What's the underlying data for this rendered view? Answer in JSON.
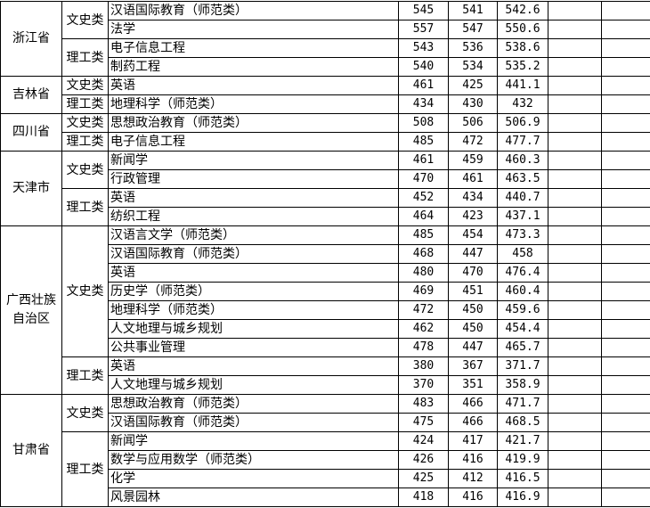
{
  "table": {
    "provinces": [
      {
        "name": "浙江省",
        "categories": [
          {
            "name": "文史类",
            "rows": [
              {
                "major": "汉语国际教育（师范类）",
                "max": "545",
                "min": "541",
                "avg": "542.6"
              },
              {
                "major": "法学",
                "max": "557",
                "min": "547",
                "avg": "550.6"
              }
            ]
          },
          {
            "name": "理工类",
            "rows": [
              {
                "major": "电子信息工程",
                "max": "543",
                "min": "536",
                "avg": "538.6"
              },
              {
                "major": "制药工程",
                "max": "540",
                "min": "534",
                "avg": "535.2"
              }
            ]
          }
        ]
      },
      {
        "name": "吉林省",
        "categories": [
          {
            "name": "文史类",
            "rows": [
              {
                "major": "英语",
                "max": "461",
                "min": "425",
                "avg": "441.1"
              }
            ]
          },
          {
            "name": "理工类",
            "rows": [
              {
                "major": "地理科学（师范类）",
                "max": "434",
                "min": "430",
                "avg": "432"
              }
            ]
          }
        ]
      },
      {
        "name": "四川省",
        "categories": [
          {
            "name": "文史类",
            "rows": [
              {
                "major": "思想政治教育（师范类）",
                "max": "508",
                "min": "506",
                "avg": "506.9"
              }
            ]
          },
          {
            "name": "理工类",
            "rows": [
              {
                "major": "电子信息工程",
                "max": "485",
                "min": "472",
                "avg": "477.7"
              }
            ]
          }
        ]
      },
      {
        "name": "天津市",
        "categories": [
          {
            "name": "文史类",
            "rows": [
              {
                "major": "新闻学",
                "max": "461",
                "min": "459",
                "avg": "460.3"
              },
              {
                "major": "行政管理",
                "max": "470",
                "min": "461",
                "avg": "463.5"
              }
            ]
          },
          {
            "name": "理工类",
            "rows": [
              {
                "major": "英语",
                "max": "452",
                "min": "434",
                "avg": "440.7"
              },
              {
                "major": "纺织工程",
                "max": "464",
                "min": "423",
                "avg": "437.1"
              }
            ]
          }
        ]
      },
      {
        "name": "广西壮族自治区",
        "categories": [
          {
            "name": "文史类",
            "rows": [
              {
                "major": "汉语言文学（师范类）",
                "max": "485",
                "min": "454",
                "avg": "473.3"
              },
              {
                "major": "汉语国际教育（师范类）",
                "max": "468",
                "min": "447",
                "avg": "458"
              },
              {
                "major": "英语",
                "max": "480",
                "min": "470",
                "avg": "476.4"
              },
              {
                "major": "历史学（师范类）",
                "max": "469",
                "min": "451",
                "avg": "460.4"
              },
              {
                "major": "地理科学（师范类）",
                "max": "472",
                "min": "450",
                "avg": "459.6"
              },
              {
                "major": "人文地理与城乡规划",
                "max": "462",
                "min": "450",
                "avg": "454.4"
              },
              {
                "major": "公共事业管理",
                "max": "478",
                "min": "447",
                "avg": "465.7"
              }
            ]
          },
          {
            "name": "理工类",
            "rows": [
              {
                "major": "英语",
                "max": "380",
                "min": "367",
                "avg": "371.7"
              },
              {
                "major": "人文地理与城乡规划",
                "max": "370",
                "min": "351",
                "avg": "358.9"
              }
            ]
          }
        ]
      },
      {
        "name": "甘肃省",
        "categories": [
          {
            "name": "文史类",
            "rows": [
              {
                "major": "思想政治教育（师范类）",
                "max": "483",
                "min": "466",
                "avg": "471.7"
              },
              {
                "major": "汉语国际教育（师范类）",
                "max": "475",
                "min": "466",
                "avg": "468.5"
              }
            ]
          },
          {
            "name": "理工类",
            "rows": [
              {
                "major": "新闻学",
                "max": "424",
                "min": "417",
                "avg": "421.7"
              },
              {
                "major": "数学与应用数学（师范类）",
                "max": "426",
                "min": "416",
                "avg": "419.9"
              },
              {
                "major": "化学",
                "max": "425",
                "min": "412",
                "avg": "416.5"
              },
              {
                "major": "风景园林",
                "max": "418",
                "min": "416",
                "avg": "416.9"
              }
            ]
          }
        ]
      }
    ]
  }
}
